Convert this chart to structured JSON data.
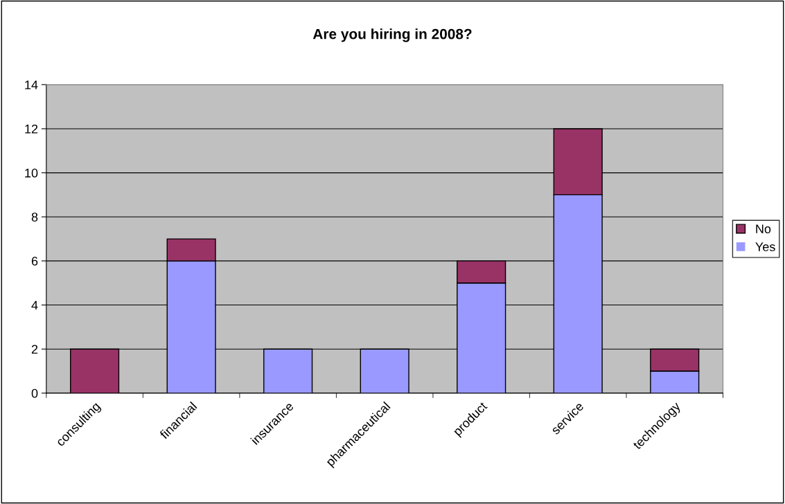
{
  "chart_data": {
    "type": "bar",
    "title": "Are you hiring in 2008?",
    "stacked": true,
    "categories": [
      "consulting",
      "financial",
      "insurance",
      "pharmaceutical",
      "product",
      "service",
      "technology"
    ],
    "series": [
      {
        "name": "Yes",
        "color": "#9999ff",
        "values": [
          0,
          6,
          2,
          2,
          5,
          9,
          1
        ]
      },
      {
        "name": "No",
        "color": "#993366",
        "values": [
          2,
          1,
          0,
          0,
          1,
          3,
          1
        ]
      }
    ],
    "ylim": [
      0,
      14
    ],
    "yticks": [
      0,
      2,
      4,
      6,
      8,
      10,
      12,
      14
    ],
    "grid": "y",
    "legend": "right"
  }
}
